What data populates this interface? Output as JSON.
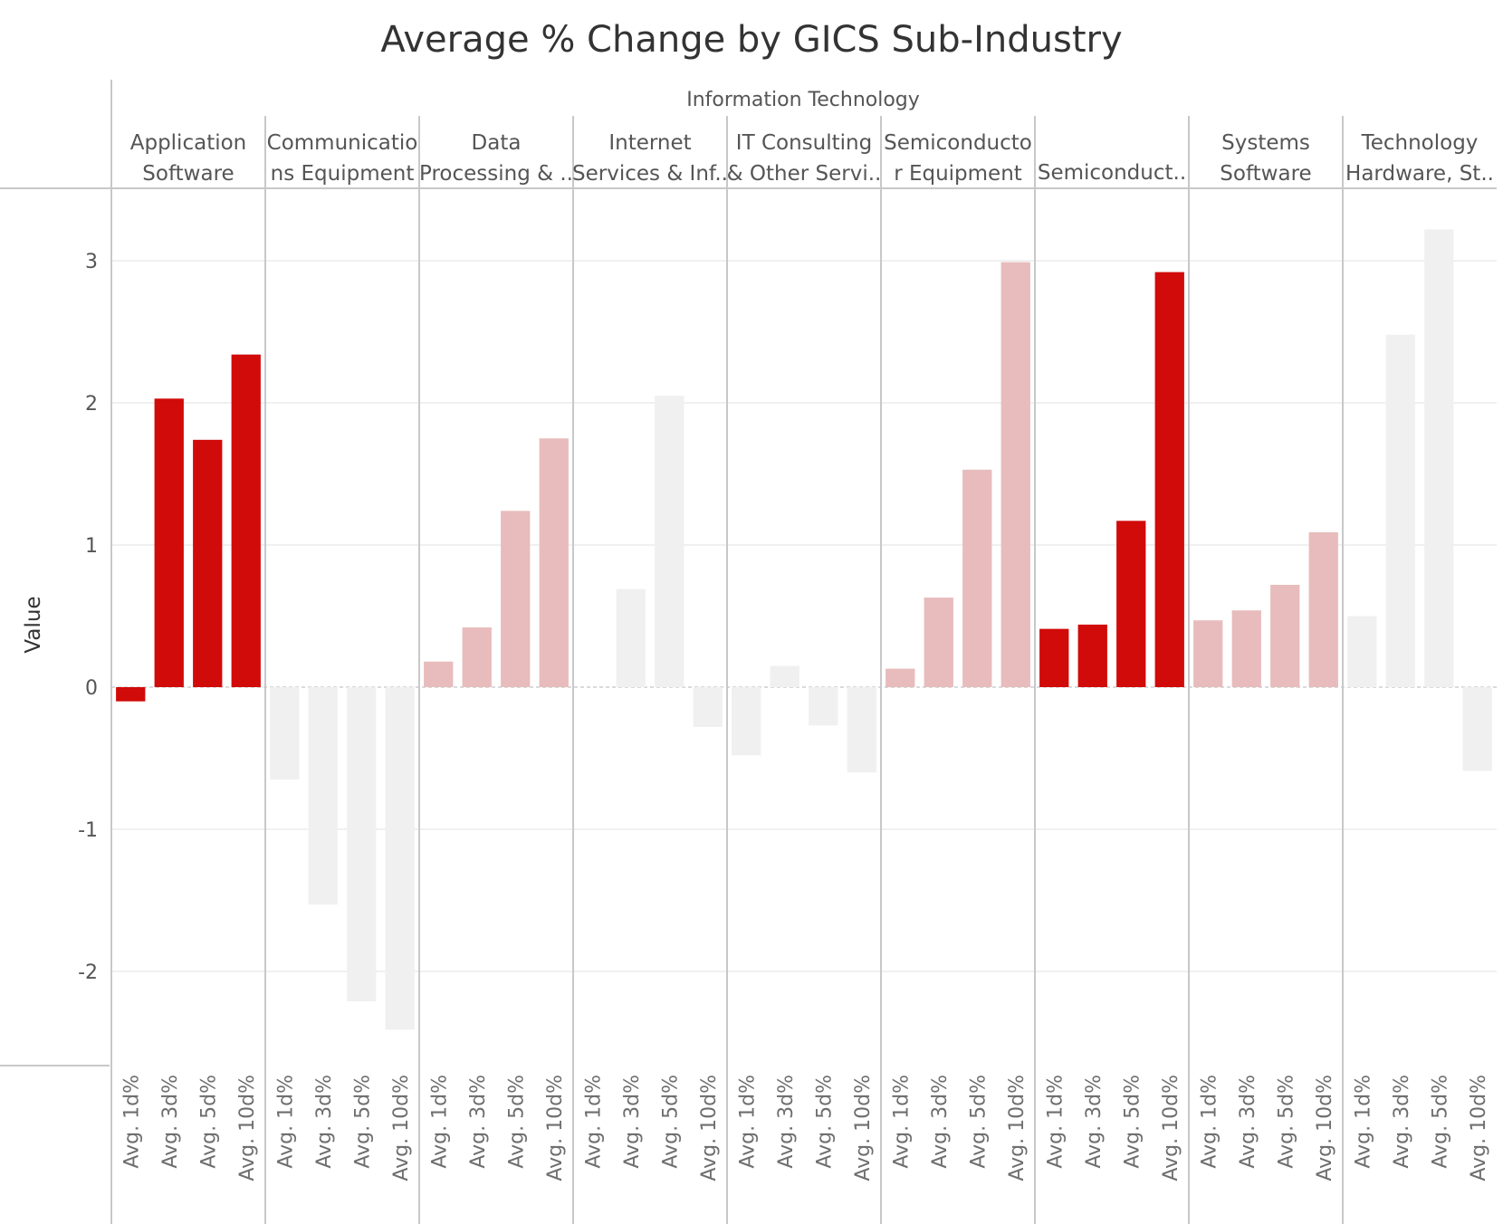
{
  "chart_data": {
    "type": "bar",
    "title": "Average % Change by GICS Sub-Industry",
    "sector": "Information Technology",
    "ylabel": "Value",
    "ylim": [
      -2.7,
      3.5
    ],
    "yticks": [
      3,
      2,
      1,
      0,
      -1,
      -2
    ],
    "grid": true,
    "measures": [
      "Avg. 1d%",
      "Avg. 3d%",
      "Avg. 5d%",
      "Avg. 10d%"
    ],
    "colors": {
      "strong": "#d10a0a",
      "medium": "#e8bcbc",
      "muted": "#f0f0f0"
    },
    "panels": [
      {
        "header": [
          "Application",
          "Software"
        ],
        "color": "strong",
        "values": [
          -0.1,
          2.03,
          1.74,
          2.34
        ]
      },
      {
        "header": [
          "Communicatio",
          "ns Equipment"
        ],
        "color": "muted",
        "values": [
          -0.65,
          -1.53,
          -2.21,
          -2.41
        ]
      },
      {
        "header": [
          "Data",
          "Processing & .."
        ],
        "color": "medium",
        "values": [
          0.18,
          0.42,
          1.24,
          1.75
        ]
      },
      {
        "header": [
          "Internet",
          "Services & Inf.."
        ],
        "color": "muted",
        "values": [
          0.0,
          0.69,
          2.05,
          -0.28
        ]
      },
      {
        "header": [
          "IT Consulting",
          "& Other Servi.."
        ],
        "color": "muted",
        "values": [
          -0.48,
          0.15,
          -0.27,
          -0.6
        ]
      },
      {
        "header": [
          "Semiconducto",
          "r Equipment"
        ],
        "color": "medium",
        "values": [
          0.13,
          0.63,
          1.53,
          2.99
        ]
      },
      {
        "header": [
          "Semiconduct.."
        ],
        "color": "strong",
        "values": [
          0.41,
          0.44,
          1.17,
          2.92
        ]
      },
      {
        "header": [
          "Systems",
          "Software"
        ],
        "color": "medium",
        "values": [
          0.47,
          0.54,
          0.72,
          1.09
        ]
      },
      {
        "header": [
          "Technology",
          "Hardware, St.."
        ],
        "color": "muted",
        "values": [
          0.5,
          2.48,
          3.22,
          -0.59
        ]
      }
    ]
  }
}
